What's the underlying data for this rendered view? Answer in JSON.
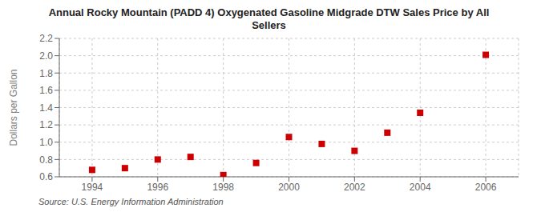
{
  "chart_data": {
    "type": "scatter",
    "title": "Annual Rocky Mountain (PADD 4) Oxygenated Gasoline Midgrade DTW Sales Price by All\nSellers",
    "y_label": "Dollars per Gallon",
    "annotations": [
      "Source: U.S. Energy Information Administration"
    ],
    "x": [
      1994,
      1995,
      1996,
      1997,
      1998,
      1999,
      2000,
      2001,
      2002,
      2003,
      2004,
      2006
    ],
    "values": [
      0.68,
      0.7,
      0.8,
      0.83,
      0.62,
      0.76,
      1.06,
      0.98,
      0.9,
      1.11,
      1.34,
      2.01
    ],
    "color": "#cc0000",
    "marker": "square",
    "xlim": [
      1993.0,
      2007.0
    ],
    "ylim": [
      0.6,
      2.2
    ],
    "xticks": [
      1994,
      1996,
      1998,
      2000,
      2002,
      2004,
      2006
    ],
    "yticks": [
      0.6,
      0.8,
      {
        "value": 1.0,
        "label": "1.0"
      },
      1.2,
      1.4,
      1.6,
      1.8,
      {
        "value": 2.0,
        "label": "2.0"
      },
      2.2
    ],
    "grid": true
  }
}
